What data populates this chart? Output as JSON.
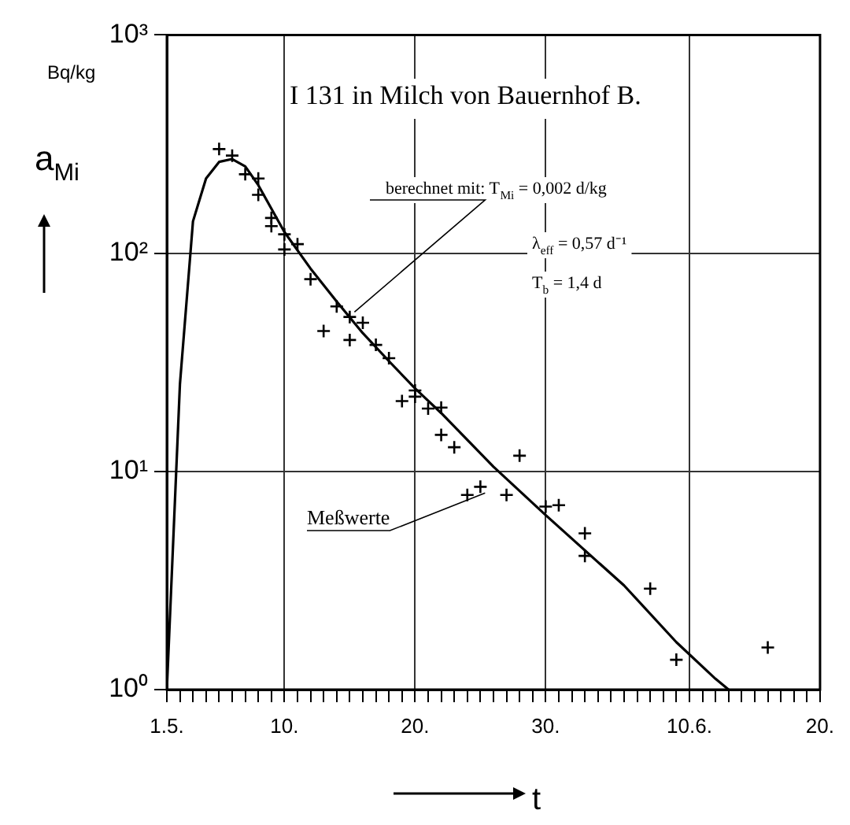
{
  "chart_data": {
    "type": "scatter",
    "title": "I 131 in Milch von Bauernhof B.",
    "xlabel": "t",
    "ylabel": "a$_{Mi}$",
    "annotations": [
      {
        "text": "berechnet mit: T$_{Mi}$ = 0,002 d/kg",
        "x": "--05-15",
        "y": 52
      },
      "λ$_{eff}$ = 0,57 d⁻¹",
      "T$_{b}$ = 1,4 d",
      {
        "text": "Meßwerte",
        "x": "--05-25",
        "y": 8.5
      },
      "Bq/kg"
    ],
    "log": "y",
    "grid": true,
    "legend": false,
    "xlim": [
      "--05-01",
      "--06-20"
    ],
    "xticks": [
      {
        "value": "--05-01",
        "label": "1.5."
      },
      {
        "value": "--05-02",
        "label": null
      },
      {
        "value": "--05-03",
        "label": null
      },
      {
        "value": "--05-04",
        "label": null
      },
      {
        "value": "--05-05",
        "label": null
      },
      {
        "value": "--05-06",
        "label": null
      },
      {
        "value": "--05-07",
        "label": null
      },
      {
        "value": "--05-08",
        "label": null
      },
      {
        "value": "--05-09",
        "label": null
      },
      {
        "value": "--05-10",
        "label": "10."
      },
      {
        "value": "--05-11",
        "label": null
      },
      {
        "value": "--05-12",
        "label": null
      },
      {
        "value": "--05-13",
        "label": null
      },
      {
        "value": "--05-14",
        "label": null
      },
      {
        "value": "--05-15",
        "label": null
      },
      {
        "value": "--05-16",
        "label": null
      },
      {
        "value": "--05-17",
        "label": null
      },
      {
        "value": "--05-18",
        "label": null
      },
      {
        "value": "--05-19",
        "label": null
      },
      {
        "value": "--05-20",
        "label": "20."
      },
      {
        "value": "--05-21",
        "label": null
      },
      {
        "value": "--05-22",
        "label": null
      },
      {
        "value": "--05-23",
        "label": null
      },
      {
        "value": "--05-24",
        "label": null
      },
      {
        "value": "--05-25",
        "label": null
      },
      {
        "value": "--05-26",
        "label": null
      },
      {
        "value": "--05-27",
        "label": null
      },
      {
        "value": "--05-28",
        "label": null
      },
      {
        "value": "--05-29",
        "label": null
      },
      {
        "value": "--05-30",
        "label": "30."
      },
      {
        "value": "--05-31",
        "label": null
      },
      {
        "value": "--06-01",
        "label": null
      },
      {
        "value": "--06-02",
        "label": null
      },
      {
        "value": "--06-03",
        "label": null
      },
      {
        "value": "--06-04",
        "label": null
      },
      {
        "value": "--06-05",
        "label": null
      },
      {
        "value": "--06-06",
        "label": null
      },
      {
        "value": "--06-07",
        "label": null
      },
      {
        "value": "--06-08",
        "label": null
      },
      {
        "value": "--06-09",
        "label": null
      },
      {
        "value": "--06-10",
        "label": "10.6."
      },
      {
        "value": "--06-11",
        "label": null
      },
      {
        "value": "--06-12",
        "label": null
      },
      {
        "value": "--06-13",
        "label": null
      },
      {
        "value": "--06-14",
        "label": null
      },
      {
        "value": "--06-15",
        "label": null
      },
      {
        "value": "--06-16",
        "label": null
      },
      {
        "value": "--06-17",
        "label": null
      },
      {
        "value": "--06-18",
        "label": null
      },
      {
        "value": "--06-19",
        "label": null
      },
      {
        "value": "--06-20",
        "label": "20."
      }
    ],
    "ylim": [
      1,
      1000
    ],
    "yticks": [
      {
        "value": 1,
        "label": "10⁰"
      },
      {
        "value": 10,
        "label": "10¹"
      },
      {
        "value": 100,
        "label": "10²"
      },
      {
        "value": 1000,
        "label": "10³"
      }
    ],
    "series": [
      {
        "type": "scatter",
        "color": "#000000",
        "marker": "cross",
        "x": [
          "--05-05",
          "--05-06",
          "--05-07",
          "--05-08",
          "--05-08",
          "--05-09",
          "--05-09",
          "--05-10",
          "--05-10",
          "--05-11",
          "--05-12",
          "--05-14",
          "--05-13",
          "--05-15",
          "--05-16",
          "--05-15",
          "--05-17",
          "--05-18",
          "--05-19",
          "--05-20",
          "--05-20",
          "--05-21",
          "--05-22",
          "--05-22",
          "--05-23",
          "--05-24",
          "--05-25",
          "--05-27",
          "--05-28",
          "--05-30",
          "--05-31",
          "--06-02",
          "--06-02",
          "--06-07",
          "--06-09",
          "--06-16"
        ],
        "values": [
          300,
          280,
          230,
          220,
          185,
          145,
          133,
          122,
          104,
          110,
          76,
          57,
          44,
          51,
          48,
          40,
          38,
          33,
          21,
          23.5,
          22,
          19.4,
          14.7,
          19.6,
          12.9,
          7.8,
          8.5,
          7.8,
          11.8,
          6.9,
          7.0,
          5.2,
          4.1,
          2.9,
          1.37,
          1.56
        ]
      },
      {
        "type": "line",
        "color": "#000000",
        "marker": "none",
        "line_style": "solid",
        "x": [
          "--05-01",
          "--05-02",
          "--05-03",
          "--05-04",
          "--05-05",
          "--05-06",
          "--05-07",
          "--05-08",
          "--05-09",
          "--05-10",
          "--05-12",
          "--05-14",
          "--05-16",
          "--05-18",
          "--05-20",
          "--05-22",
          "--05-26",
          "--05-30",
          "--06-05",
          "--06-09",
          "--06-12",
          "--06-13"
        ],
        "values": [
          1,
          25,
          140,
          220,
          262,
          270,
          250,
          205,
          160,
          125,
          85,
          60,
          43,
          32,
          24,
          18.5,
          10.5,
          6.3,
          3.0,
          1.65,
          1.12,
          1
        ]
      }
    ]
  }
}
